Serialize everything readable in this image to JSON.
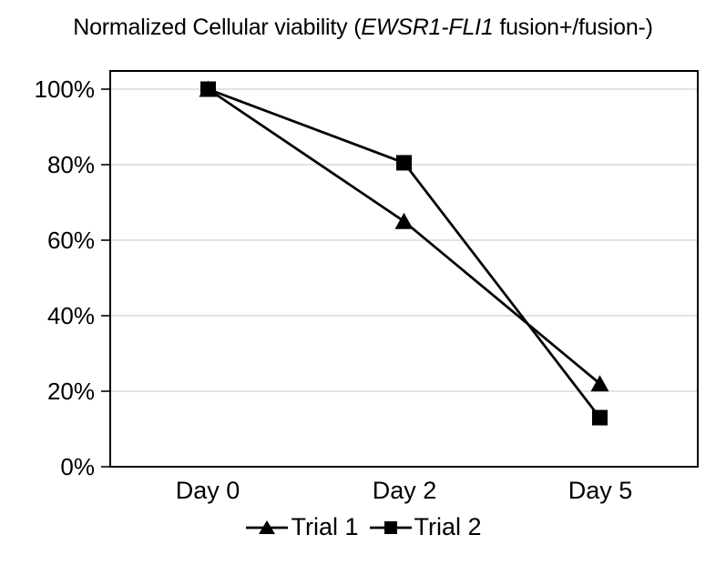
{
  "title": {
    "prefix": "Normalized Cellular viability (",
    "italic": "EWSR1-FLI1",
    "suffix": " fusion+/fusion-)"
  },
  "chart_data": {
    "type": "line",
    "title": "Normalized Cellular viability (EWSR1-FLI1 fusion+/fusion-)",
    "categories": [
      "Day 0",
      "Day 2",
      "Day 5"
    ],
    "series": [
      {
        "name": "Trial 1",
        "marker": "triangle",
        "values": [
          100,
          65,
          22
        ]
      },
      {
        "name": "Trial 2",
        "marker": "square",
        "values": [
          100,
          80.5,
          13
        ]
      }
    ],
    "xlabel": "",
    "ylabel": "",
    "ylim": [
      0,
      105
    ],
    "ytick_labels": [
      "100%",
      "80%",
      "60%",
      "40%",
      "20%",
      "0%"
    ],
    "ytick_values": [
      100,
      80,
      60,
      40,
      20,
      0
    ],
    "grid": true,
    "legend_position": "bottom",
    "colors": {
      "series": "#000000",
      "gridline": "#d9d9d9",
      "plot_border": "#000000",
      "text": "#000000",
      "background": "#ffffff"
    }
  }
}
